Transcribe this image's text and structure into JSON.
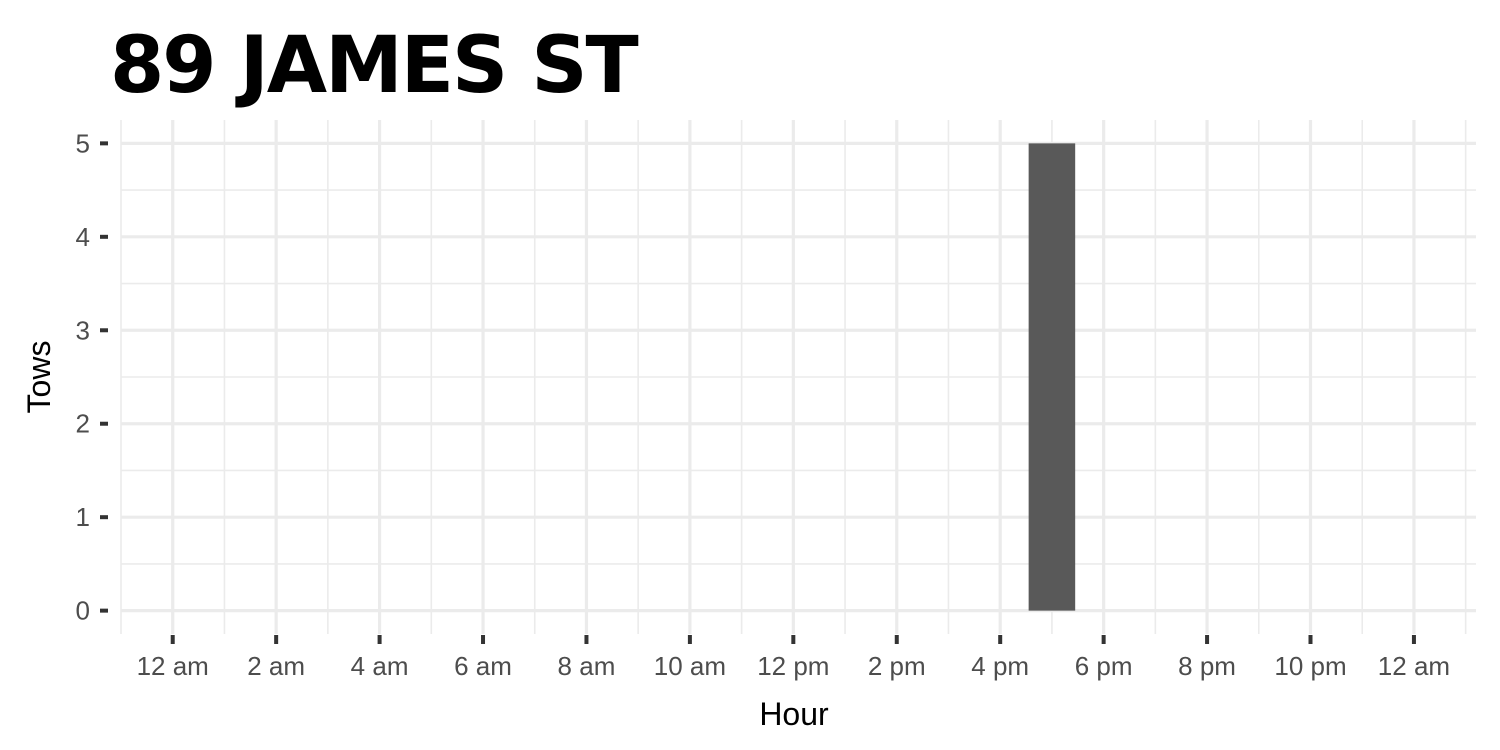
{
  "chart_data": {
    "type": "bar",
    "title": "89 JAMES ST",
    "xlabel": "Hour",
    "ylabel": "Tows",
    "x_ticks": [
      "12 am",
      "2 am",
      "4 am",
      "6 am",
      "8 am",
      "10 am",
      "12 pm",
      "2 pm",
      "4 pm",
      "6 pm",
      "8 pm",
      "10 pm",
      "12 am"
    ],
    "x_tick_hours": [
      0,
      2,
      4,
      6,
      8,
      10,
      12,
      14,
      16,
      18,
      20,
      22,
      24
    ],
    "xlim_hours": [
      -1,
      25.2
    ],
    "y_ticks": [
      0,
      1,
      2,
      3,
      4,
      5
    ],
    "ylim": [
      -0.25,
      5.25
    ],
    "bars": [
      {
        "hour": 17,
        "value": 5
      }
    ],
    "bar_color": "#595959",
    "grid": true
  }
}
